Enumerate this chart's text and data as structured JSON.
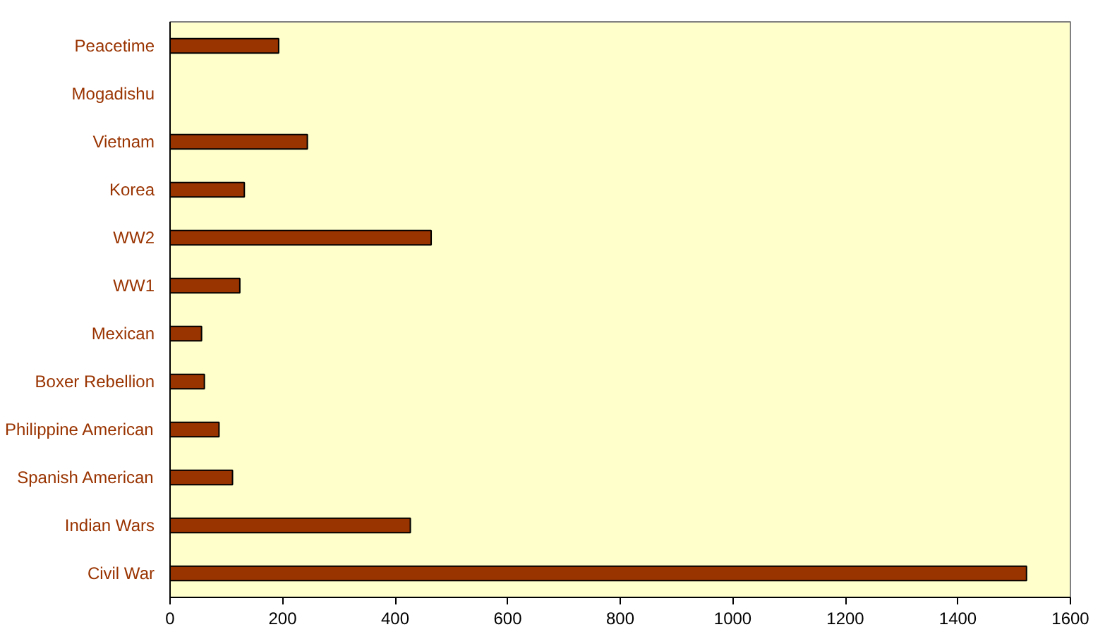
{
  "chart_data": {
    "type": "bar",
    "orientation": "horizontal",
    "categories": [
      "Peacetime",
      "Mogadishu",
      "Vietnam",
      "Korea",
      "WW2",
      "WW1",
      "Mexican",
      "Boxer Rebellion",
      "Philippine American",
      "Spanish American",
      "Indian Wars",
      "Civil War"
    ],
    "values": [
      193,
      null,
      244,
      132,
      464,
      124,
      56,
      61,
      87,
      111,
      427,
      1522
    ],
    "color": "#993300",
    "xlim": [
      0,
      1600
    ],
    "xticks": [
      0,
      200,
      400,
      600,
      800,
      1000,
      1200,
      1400,
      1600
    ],
    "grid": false
  }
}
